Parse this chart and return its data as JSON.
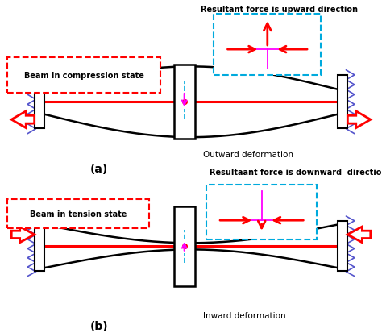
{
  "title_a": "(a)",
  "title_b": "(b)",
  "label_compression": "Beam in compression state",
  "label_tension": "Beam in tension state",
  "label_outward": "Outward deformation",
  "label_inward": "Inward deformation",
  "label_upward": "Resultant force is upward direction",
  "label_downward": "Resultaant force is downward  direction",
  "bg_color": "#ffffff",
  "black": "#000000",
  "red": "#ff0000",
  "magenta": "#ff00ff",
  "cyan_dash": "#00aadd",
  "blue_zz": "#5555cc"
}
